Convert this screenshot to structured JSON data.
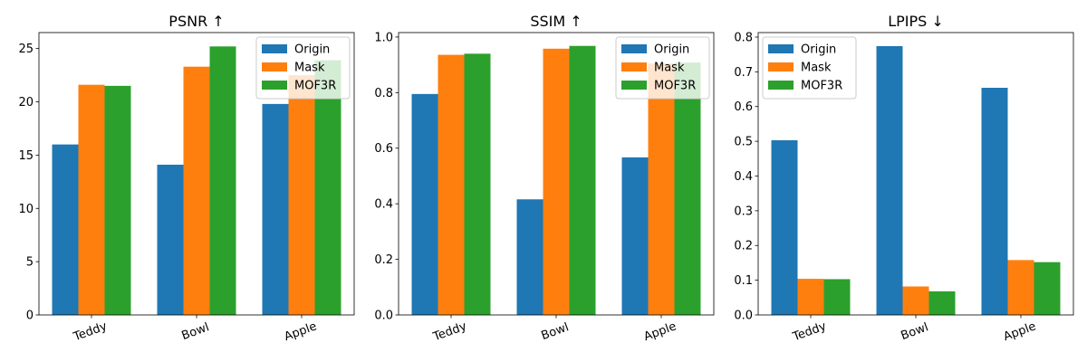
{
  "chart_data": [
    {
      "type": "bar",
      "title": "PSNR ↑",
      "categories": [
        "Teddy",
        "Bowl",
        "Apple"
      ],
      "series": [
        {
          "name": "Origin",
          "values": [
            16.0,
            14.1,
            19.8
          ],
          "color": "#1f77b4"
        },
        {
          "name": "Mask",
          "values": [
            21.6,
            23.3,
            22.5
          ],
          "color": "#ff7f0e"
        },
        {
          "name": "MOF3R",
          "values": [
            21.5,
            25.2,
            23.9
          ],
          "color": "#2ca02c"
        }
      ],
      "ylim": [
        0,
        26.5
      ],
      "yticks": [
        0,
        5,
        10,
        15,
        20,
        25
      ],
      "ytick_labels": [
        "0",
        "5",
        "10",
        "15",
        "20",
        "25"
      ],
      "legend": "top-right",
      "grid": false
    },
    {
      "type": "bar",
      "title": "SSIM ↑",
      "categories": [
        "Teddy",
        "Bowl",
        "Apple"
      ],
      "series": [
        {
          "name": "Origin",
          "values": [
            0.795,
            0.416,
            0.567
          ],
          "color": "#1f77b4"
        },
        {
          "name": "Mask",
          "values": [
            0.936,
            0.958,
            0.905
          ],
          "color": "#ff7f0e"
        },
        {
          "name": "MOF3R",
          "values": [
            0.94,
            0.968,
            0.908
          ],
          "color": "#2ca02c"
        }
      ],
      "ylim": [
        0,
        1.016
      ],
      "yticks": [
        0,
        0.2,
        0.4,
        0.6,
        0.8,
        1.0
      ],
      "ytick_labels": [
        "0.0",
        "0.2",
        "0.4",
        "0.6",
        "0.8",
        "1.0"
      ],
      "legend": "top-right",
      "grid": false
    },
    {
      "type": "bar",
      "title": "LPIPS ↓",
      "categories": [
        "Teddy",
        "Bowl",
        "Apple"
      ],
      "series": [
        {
          "name": "Origin",
          "values": [
            0.503,
            0.774,
            0.654
          ],
          "color": "#1f77b4"
        },
        {
          "name": "Mask",
          "values": [
            0.104,
            0.082,
            0.158
          ],
          "color": "#ff7f0e"
        },
        {
          "name": "MOF3R",
          "values": [
            0.103,
            0.068,
            0.152
          ],
          "color": "#2ca02c"
        }
      ],
      "ylim": [
        0,
        0.813
      ],
      "yticks": [
        0,
        0.1,
        0.2,
        0.3,
        0.4,
        0.5,
        0.6,
        0.7,
        0.8
      ],
      "ytick_labels": [
        "0.0",
        "0.1",
        "0.2",
        "0.3",
        "0.4",
        "0.5",
        "0.6",
        "0.7",
        "0.8"
      ],
      "legend": "top-left",
      "grid": false
    }
  ]
}
